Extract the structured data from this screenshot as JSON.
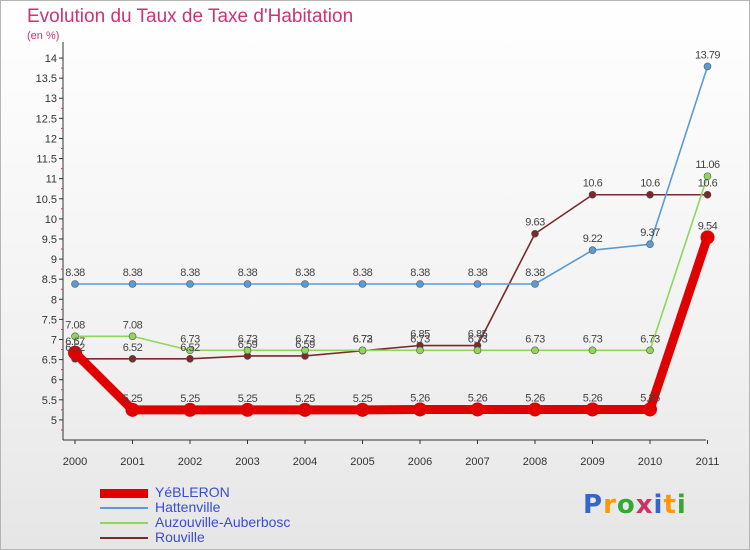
{
  "title": "Evolution du Taux de Taxe d'Habitation",
  "unit": "(en %)",
  "logo": {
    "letters": [
      "P",
      "r",
      "o",
      "x",
      "i",
      "t",
      "i"
    ],
    "colors": [
      "#3366cc",
      "#ff9900",
      "#33aa33",
      "#cc3366",
      "#3366cc",
      "#ff9900",
      "#33aa33"
    ]
  },
  "chart_data": {
    "type": "line",
    "x": [
      "2000",
      "2001",
      "2002",
      "2003",
      "2004",
      "2005",
      "2006",
      "2007",
      "2008",
      "2009",
      "2010",
      "2011"
    ],
    "ylim": [
      4.5,
      14.2
    ],
    "yticks": [
      "5",
      "5.5",
      "6",
      "6.5",
      "7",
      "7.5",
      "8",
      "8.5",
      "9",
      "9.5",
      "10",
      "10.5",
      "11",
      "11.5",
      "12",
      "12.5",
      "13",
      "13.5",
      "14"
    ],
    "grid": false,
    "legend_position": "bottom-left",
    "series": [
      {
        "name": "YéBLERON",
        "color": "#e00000",
        "values": [
          6.67,
          5.25,
          5.25,
          5.25,
          5.25,
          5.25,
          5.26,
          5.26,
          5.26,
          5.26,
          5.26,
          9.54
        ],
        "labels": [
          "6.67",
          "5.25",
          "5.25",
          "5.25",
          "5.25",
          "5.25",
          "5.26",
          "5.26",
          "5.26",
          "5.26",
          "5.26",
          "9.54"
        ]
      },
      {
        "name": "Hattenville",
        "color": "#5b9bd5",
        "values": [
          8.38,
          8.38,
          8.38,
          8.38,
          8.38,
          8.38,
          8.38,
          8.38,
          8.38,
          9.22,
          9.37,
          13.79
        ],
        "labels": [
          "8.38",
          "8.38",
          "8.38",
          "8.38",
          "8.38",
          "8.38",
          "8.38",
          "8.38",
          "8.38",
          "9.22",
          "9.37",
          "13.79"
        ]
      },
      {
        "name": "Auzouville-Auberbosc",
        "color": "#8fd65a",
        "values": [
          7.08,
          7.08,
          6.73,
          6.73,
          6.73,
          6.73,
          6.73,
          6.73,
          6.73,
          6.73,
          6.73,
          11.06
        ],
        "labels": [
          "7.08",
          "7.08",
          "6.73",
          "6.73",
          "6.73",
          "6.73",
          "6.73",
          "6.73",
          "6.73",
          "6.73",
          "6.73",
          "11.06"
        ]
      },
      {
        "name": "Rouville",
        "color": "#7a2a2a",
        "values": [
          6.52,
          6.52,
          6.52,
          6.59,
          6.59,
          6.72,
          6.85,
          6.85,
          9.63,
          10.6,
          10.6,
          10.6
        ],
        "labels": [
          "6.52",
          "6.52",
          "6.52",
          "6.59",
          "6.59",
          "6.72",
          "6.85",
          "6.85",
          "9.63",
          "10.6",
          "10.6",
          "10.6"
        ]
      }
    ]
  }
}
